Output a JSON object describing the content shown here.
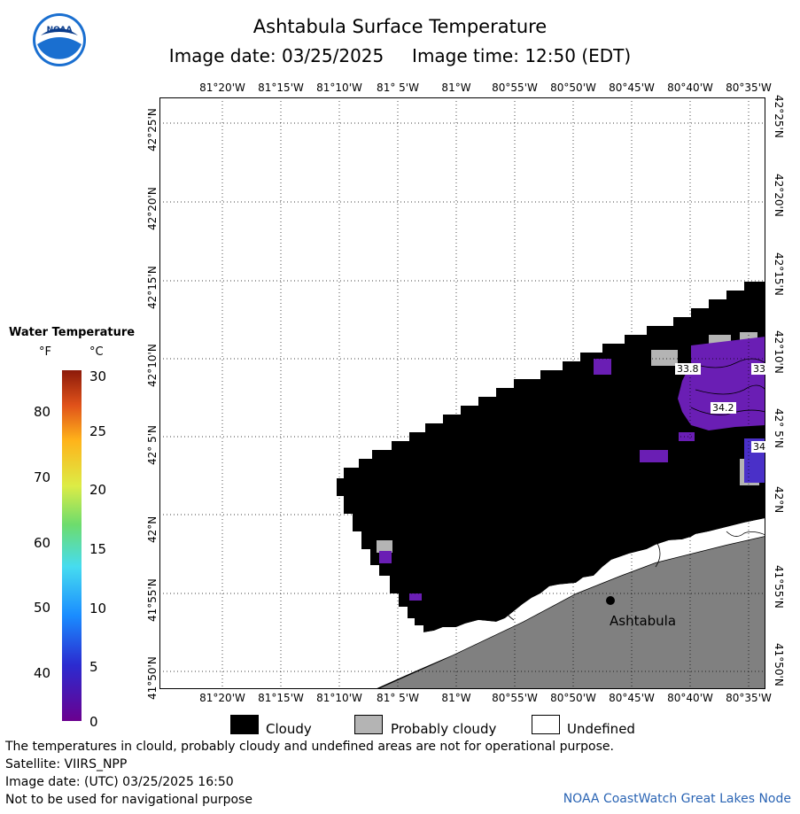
{
  "header": {
    "title": "Ashtabula Surface Temperature",
    "subtitle": "Image date: 03/25/2025     Image time: 12:50 (EDT)",
    "logo_text": "NOAA"
  },
  "map": {
    "lon_ticks": [
      "81°20'W",
      "81°15'W",
      "81°10'W",
      "81° 5'W",
      "81°W",
      "80°55'W",
      "80°50'W",
      "80°45'W",
      "80°40'W",
      "80°35'W"
    ],
    "lat_ticks": [
      "42°25'N",
      "42°20'N",
      "42°15'N",
      "42°10'N",
      "42° 5'N",
      "42°N",
      "41°55'N",
      "41°50'N"
    ],
    "temperature_labels": [
      "33.8",
      "33",
      "34.2",
      "34"
    ],
    "city": "Ashtabula",
    "colors": {
      "cloudy": "#000000",
      "probably_cloudy": "#b4b4b4",
      "undefined": "#ffffff",
      "land": "#808080",
      "water_cold": "#6a1eb4"
    }
  },
  "legend": {
    "title": "Water Temperature",
    "unit_f": "°F",
    "unit_c": "°C",
    "f_ticks": [
      "80",
      "70",
      "60",
      "50",
      "40"
    ],
    "c_ticks": [
      "30",
      "25",
      "20",
      "15",
      "10",
      "5",
      "0"
    ],
    "categories": [
      "Cloudy",
      "Probably cloudy",
      "Undefined"
    ]
  },
  "footer": {
    "line1": "The temperatures in clould, probably cloudy and undefined areas are not for operational purpose.",
    "line2": "Satellite: VIIRS_NPP",
    "line3": "Image date: (UTC) 03/25/2025  16:50",
    "line4": "Not to be used for navigational purpose",
    "node": "NOAA CoastWatch Great Lakes Node"
  }
}
